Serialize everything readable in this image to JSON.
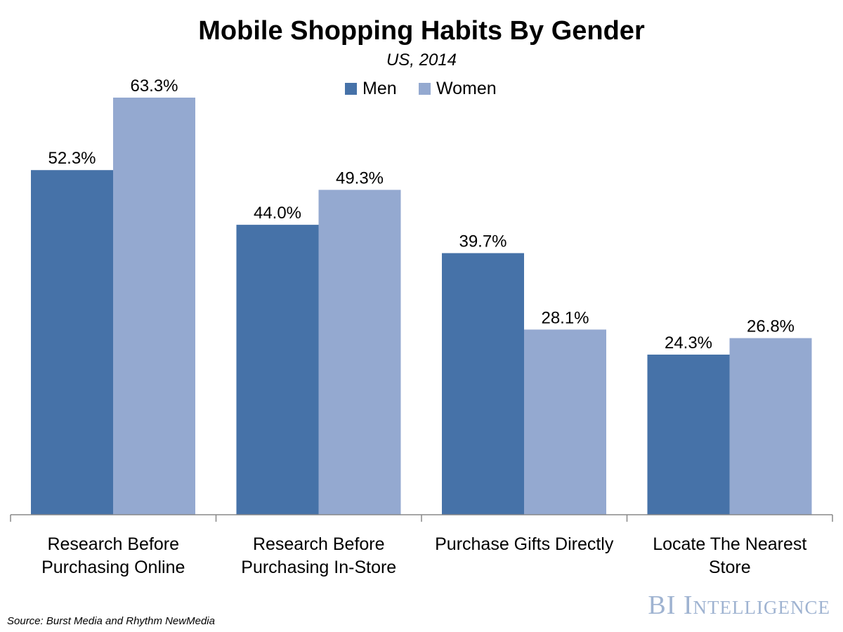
{
  "chart_data": {
    "type": "bar",
    "title": "Mobile Shopping Habits By Gender",
    "subtitle": "US, 2014",
    "categories": [
      [
        "Research Before",
        "Purchasing Online"
      ],
      [
        "Research Before",
        "Purchasing In-Store"
      ],
      [
        "Purchase Gifts Directly"
      ],
      [
        "Locate The Nearest",
        "Store"
      ]
    ],
    "series": [
      {
        "name": "Men",
        "color": "#4672a8",
        "values": [
          52.3,
          44.0,
          39.7,
          24.3
        ],
        "labels": [
          "52.3%",
          "44.0%",
          "39.7%",
          "24.3%"
        ]
      },
      {
        "name": "Women",
        "color": "#94a9d0",
        "values": [
          63.3,
          49.3,
          28.1,
          26.8
        ],
        "labels": [
          "63.3%",
          "49.3%",
          "28.1%",
          "26.8%"
        ]
      }
    ],
    "ylim": [
      0,
      70
    ],
    "xlabel": "",
    "ylabel": "",
    "grid": false,
    "legend": "top-center"
  },
  "footer": {
    "source": "Source: Burst Media and Rhythm NewMedia",
    "watermark": "BI Intelligence"
  }
}
